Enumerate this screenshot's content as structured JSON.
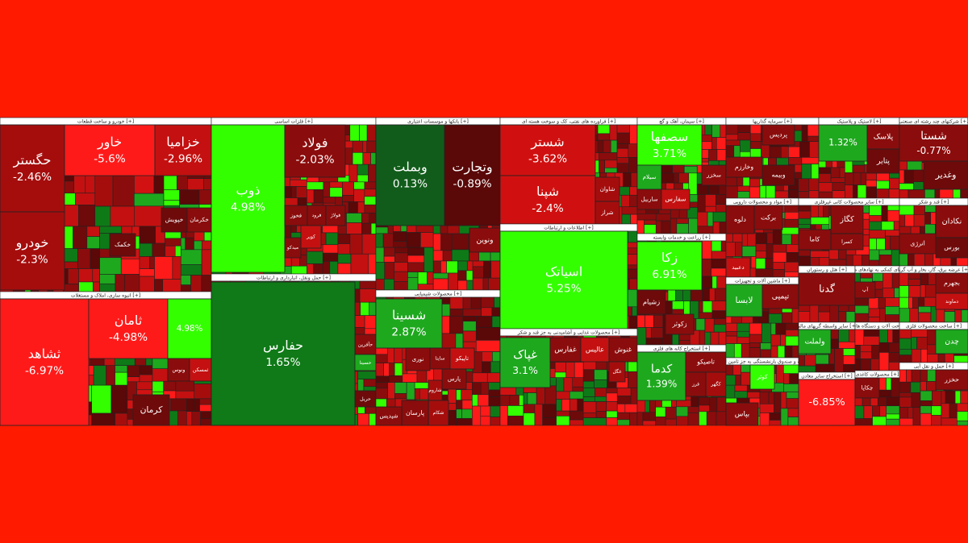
{
  "chart_data": {
    "type": "treemap",
    "sectors": [
      {
        "title": "خودرو و ساخت قطعات [+]",
        "tiles": [
          {
            "name": "حگستر",
            "change": "-2.46%",
            "color": "#a50d0d"
          },
          {
            "name": "خودرو",
            "change": "-2.3%",
            "color": "#a50d0d"
          },
          {
            "name": "خاور",
            "change": "-5.6%",
            "color": "#ff1a1a"
          },
          {
            "name": "خزامیا",
            "change": "-2.96%",
            "color": "#c41010"
          },
          {
            "name": "خکمک",
            "color": "#6e0a0a"
          },
          {
            "name": "خپویش",
            "color": "#6e0a0a"
          },
          {
            "name": "خکرمان",
            "color": "#8b0c0c"
          }
        ]
      },
      {
        "title": "انبوه سازی، املاک و مستغلات [+]",
        "tiles": [
          {
            "name": "ثشاهد",
            "change": "-6.97%",
            "color": "#ff1a1a"
          },
          {
            "name": "ثامان",
            "change": "-4.98%",
            "color": "#ff1a1a"
          },
          {
            "change": "4.98%",
            "color": "#33ff00"
          },
          {
            "name": "ونوس",
            "color": "#8b0c0c"
          },
          {
            "name": "ثمسکن",
            "color": "#c41010"
          },
          {
            "name": "کرمان",
            "color": "#6e0a0a"
          }
        ]
      },
      {
        "title": "فلزات اساسی [+]",
        "tiles": [
          {
            "name": "ذوب",
            "change": "4.98%",
            "color": "#33ff00"
          },
          {
            "name": "فولاد",
            "change": "-2.03%",
            "color": "#8b0c0c"
          },
          {
            "name": "فخوز",
            "color": "#8b0c0c"
          },
          {
            "name": "فرود",
            "color": "#8b0c0c"
          },
          {
            "name": "فولاژ",
            "color": "#8b0c0c"
          },
          {
            "name": "کویر",
            "color": "#c41010"
          },
          {
            "name": "میدکو",
            "color": "#8b0c0c"
          }
        ]
      },
      {
        "title": "حمل ونقل، انبارداری و ارتباطات [+]",
        "tiles": [
          {
            "name": "حفارس",
            "change": "1.65%",
            "color": "#0f7a17"
          },
          {
            "name": "حآفرین",
            "color": "#8b0c0c"
          },
          {
            "name": "حسینا",
            "color": "#1ea81e"
          },
          {
            "name": "حریل",
            "color": "#6e0a0a"
          }
        ]
      },
      {
        "title": "بانکها و موسسات اعتباری [+]",
        "tiles": [
          {
            "name": "وبملت",
            "change": "0.13%",
            "color": "#115c1a"
          },
          {
            "name": "وتجارت",
            "change": "-0.89%",
            "color": "#5a0808"
          },
          {
            "name": "ونوین",
            "color": "#8b0c0c"
          }
        ]
      },
      {
        "title": "محصولات شیمیایی [+]",
        "tiles": [
          {
            "name": "شسینا",
            "change": "2.87%",
            "color": "#1ea81e"
          },
          {
            "name": "نوری",
            "color": "#8b0c0c"
          },
          {
            "name": "ساینا",
            "color": "#8b0c0c"
          },
          {
            "name": "تاپیکو",
            "color": "#c41010"
          },
          {
            "name": "پارس",
            "color": "#8b0c0c"
          },
          {
            "name": "شاروم",
            "color": "#a50d0d"
          },
          {
            "name": "شکام",
            "color": "#a50d0d"
          },
          {
            "name": "پارسان",
            "color": "#8b0c0c"
          },
          {
            "name": "شپدیس",
            "color": "#8b0c0c"
          }
        ]
      },
      {
        "title": "فراورده های نفتی، کک و سوخت هسته ای [+]",
        "tiles": [
          {
            "name": "شستر",
            "change": "-3.62%",
            "color": "#d01010"
          },
          {
            "name": "شپنا",
            "change": "-2.4%",
            "color": "#d01010"
          },
          {
            "name": "شاوان",
            "color": "#a50d0d"
          },
          {
            "name": "شراز",
            "color": "#a50d0d"
          }
        ]
      },
      {
        "title": "اطلاعات و ارتباطات [+]",
        "tiles": [
          {
            "name": "اسیاتک",
            "change": "5.25%",
            "color": "#33ff00"
          }
        ]
      },
      {
        "title": "محصولات غذایی و آشامیدنی به جز قند و شکر [+]",
        "tiles": [
          {
            "name": "غپاک",
            "change": "3.1%",
            "color": "#1ea81e"
          },
          {
            "name": "غفارس",
            "color": "#8b0c0c"
          },
          {
            "name": "عالیس",
            "color": "#c41010"
          },
          {
            "name": "غنوش",
            "color": "#8b0c0c"
          },
          {
            "name": "غگل",
            "color": "#a50d0d"
          }
        ]
      },
      {
        "title": "سیمان، آهک و گچ [+]",
        "tiles": [
          {
            "name": "سصفها",
            "change": "3.71%",
            "color": "#33ff00"
          },
          {
            "name": "سیلام",
            "color": "#1ea81e"
          },
          {
            "name": "ساربیل",
            "color": "#8b0c0c"
          },
          {
            "name": "سفارس",
            "color": "#c41010"
          },
          {
            "name": "سخزر",
            "color": "#8b0c0c"
          }
        ]
      },
      {
        "title": "زراعت و خدمات وابسته [+]",
        "tiles": [
          {
            "name": "زکا",
            "change": "6.91%",
            "color": "#33ff00"
          },
          {
            "name": "زشیام",
            "color": "#6e0a0a"
          },
          {
            "name": "زکوثر",
            "color": "#8b0c0c"
          }
        ]
      },
      {
        "title": "استخراج کانه های فلزی [+]",
        "tiles": [
          {
            "name": "کدما",
            "change": "1.39%",
            "color": "#1ea81e"
          },
          {
            "name": "تاصیکو",
            "color": "#8b0c0c"
          },
          {
            "name": "کگهر",
            "color": "#a50d0d"
          },
          {
            "name": "فرز",
            "color": "#8b0c0c"
          }
        ]
      },
      {
        "title": "سرمایه گذاریها [+]",
        "tiles": [
          {
            "name": "پردیس",
            "color": "#8b0c0c"
          },
          {
            "name": "وخارزم",
            "color": "#8b0c0c"
          },
          {
            "name": "وبیمه",
            "color": "#6e0a0a"
          }
        ]
      },
      {
        "title": "لاستیک و پلاستیک [+]",
        "tiles": [
          {
            "change": "1.32%",
            "color": "#1ea81e"
          },
          {
            "name": "پلاسک",
            "color": "#8b0c0c"
          },
          {
            "name": "پتایر",
            "color": "#6e0a0a"
          }
        ]
      },
      {
        "title": "شرکتهای چند رشته ای صنعتی [+]",
        "tiles": [
          {
            "name": "شستا",
            "change": "-0.77%",
            "color": "#8b0c0c"
          },
          {
            "name": "وغدیر",
            "color": "#6e0a0a"
          }
        ]
      },
      {
        "title": "مواد و محصولات دارویی [+]",
        "tiles": [
          {
            "name": "دلوه",
            "color": "#8b0c0c"
          },
          {
            "name": "برکت",
            "color": "#8b0c0c"
          },
          {
            "name": "دعبید",
            "color": "#c41010"
          }
        ]
      },
      {
        "title": "سایر محصولات کانی غیرفلزی [+]",
        "tiles": [
          {
            "name": "کگاز",
            "color": "#8b0c0c"
          },
          {
            "name": "کسرا",
            "color": "#8b0c0c"
          },
          {
            "name": "کاما",
            "color": "#8b0c0c"
          }
        ]
      },
      {
        "title": "قند و شکر [+]",
        "tiles": [
          {
            "name": "نکادان",
            "color": "#8b0c0c"
          },
          {
            "name": "انرژی",
            "color": "#8b0c0c"
          },
          {
            "name": "بورس",
            "color": "#6e0a0a"
          }
        ]
      },
      {
        "title": "ماشین آلات و تجهیزات [+]",
        "tiles": [
          {
            "name": "لابسا",
            "color": "#1ea81e"
          },
          {
            "name": "تپمپی",
            "color": "#8b0c0c"
          }
        ]
      },
      {
        "title": "هتل و رستوران [+]",
        "tiles": [
          {
            "name": "گدنا",
            "color": "#8b0c0c"
          }
        ]
      },
      {
        "title": "فعالیتهای کمکی به نهادهای مالی واسط [+]",
        "tiles": [
          {
            "name": "آپ",
            "color": "#8b0c0c"
          }
        ]
      },
      {
        "title": "عرضه برق، گاز، بخار و آب گرم [+]",
        "tiles": [
          {
            "name": "بجهرم",
            "color": "#8b0c0c"
          },
          {
            "name": "دماوند",
            "color": "#c41010"
          }
        ]
      },
      {
        "title": "بیمه و صندوق بازنشستگی به جز تامین اجتماعی [+]",
        "tiles": [
          {
            "name": "کوثر",
            "color": "#33ff00"
          },
          {
            "name": "بپاس",
            "color": "#8b0c0c"
          }
        ]
      },
      {
        "title": "سایر واسطه گریهای مالی [+]",
        "tiles": [
          {
            "name": "ولملت",
            "color": "#1ea81e"
          }
        ]
      },
      {
        "title": "استخراج سایر معادن [+]",
        "tiles": [
          {
            "change": "-6.85%",
            "color": "#ff1a1a"
          }
        ]
      },
      {
        "title": "ساخت آلات و دستگاه های برقی [+]",
        "tiles": []
      },
      {
        "title": "ساخت محصولات فلزی [+]",
        "tiles": [
          {
            "name": "چدن",
            "color": "#1ea81e"
          }
        ]
      },
      {
        "title": "حمل و نقل آبی [+]",
        "tiles": [
          {
            "name": "حخزر",
            "color": "#8b0c0c"
          }
        ]
      },
      {
        "title": "محصولات کاغذی [+]",
        "tiles": [
          {
            "name": "چکاپا",
            "color": "#8b0c0c"
          }
        ]
      }
    ]
  }
}
